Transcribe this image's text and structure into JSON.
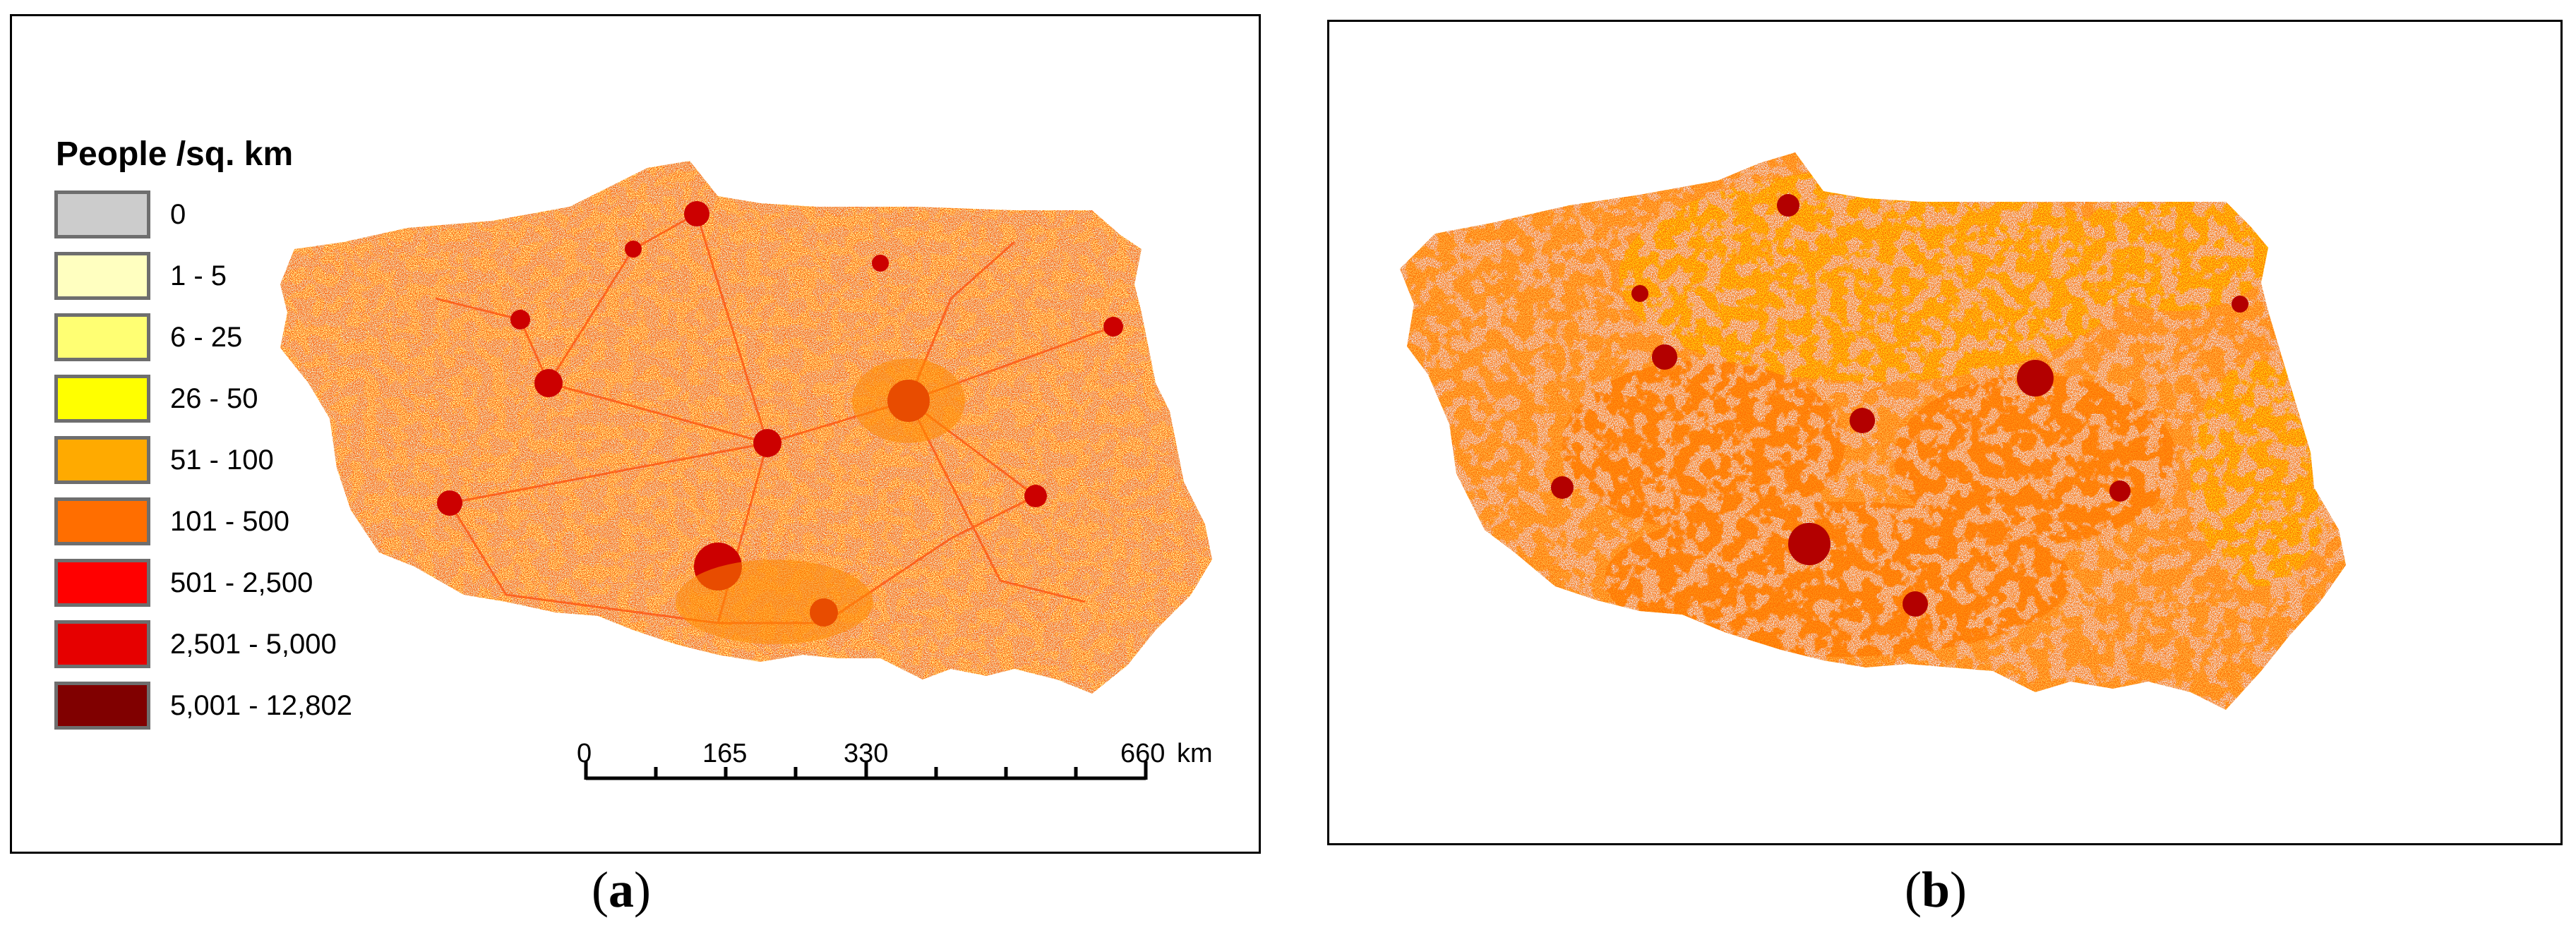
{
  "panels": [
    {
      "caption_open": "(",
      "caption_letter": "a",
      "caption_close": ")",
      "legend": {
        "title": "People /sq. km",
        "items": [
          {
            "label": "0",
            "color": "#cccccc"
          },
          {
            "label": "1 - 5",
            "color": "#ffffc0"
          },
          {
            "label": "6 - 25",
            "color": "#ffff73"
          },
          {
            "label": "26 - 50",
            "color": "#ffff00"
          },
          {
            "label": "51 - 100",
            "color": "#ffaa00"
          },
          {
            "label": "101 - 500",
            "color": "#ff6e00"
          },
          {
            "label": "501 - 2,500",
            "color": "#ff0000"
          },
          {
            "label": "2,501 - 5,000",
            "color": "#e60000"
          },
          {
            "label": "5,001 - 12,802",
            "color": "#800000"
          }
        ]
      },
      "scale_bar": {
        "ticks": [
          "0",
          "165",
          "330",
          "660"
        ],
        "unit": "km"
      }
    },
    {
      "caption_open": "(",
      "caption_letter": "b",
      "caption_close": ")"
    }
  ],
  "colors": {
    "no_data": "#d0d0d0",
    "low": "#ffffc0",
    "mid": "#ffff00",
    "orange": "#ffaa00",
    "red": "#ff0000",
    "dark": "#800000"
  }
}
